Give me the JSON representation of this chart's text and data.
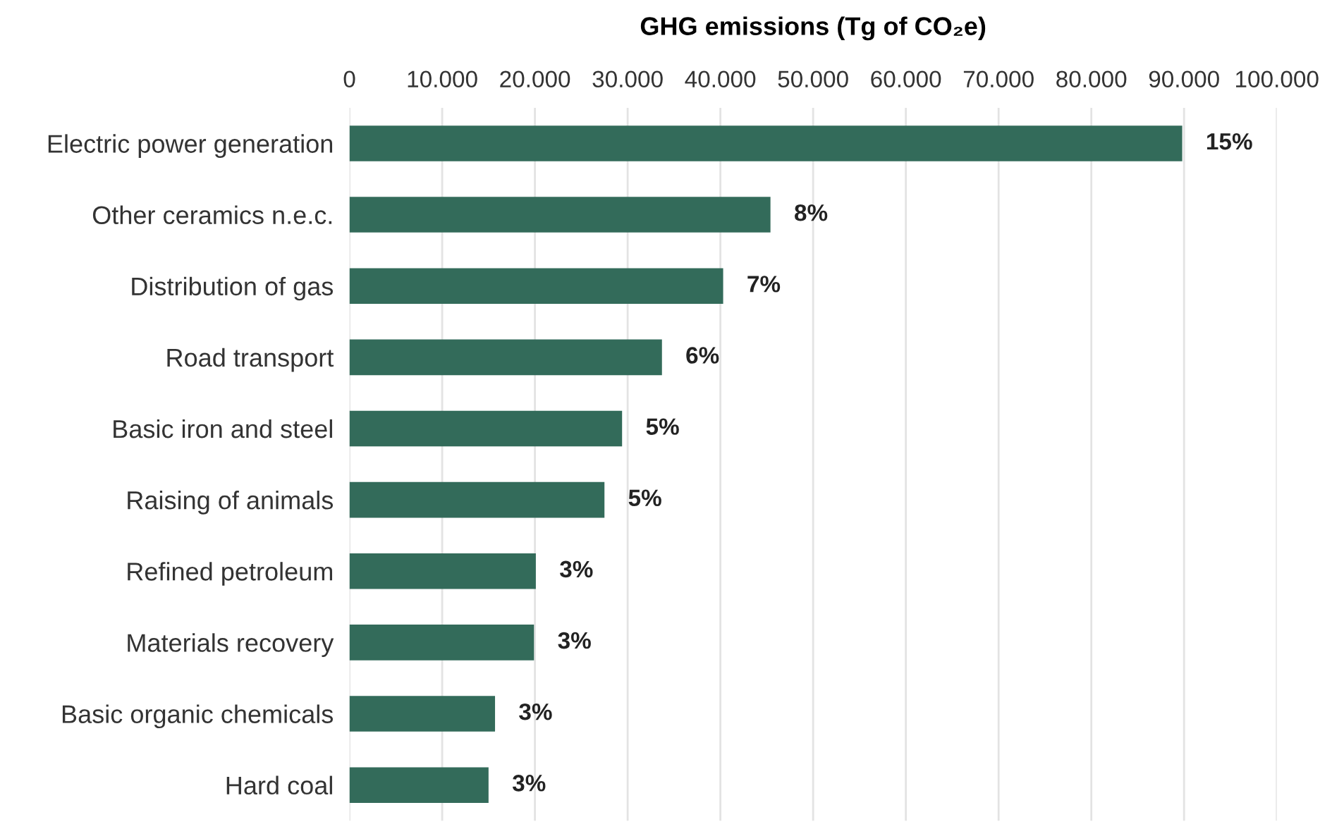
{
  "chart_data": {
    "type": "bar",
    "orientation": "horizontal",
    "xlabel": "GHG emissions (Tg of CO₂e)",
    "categories": [
      "Electric power generation",
      "Other ceramics n.e.c.",
      "Distribution of gas",
      "Road transport",
      "Basic iron and steel",
      "Raising of animals",
      "Refined petroleum",
      "Materials recovery",
      "Basic organic chemicals",
      "Hard coal"
    ],
    "values": [
      89800,
      45400,
      40300,
      33700,
      29400,
      27500,
      20100,
      19900,
      15700,
      15000
    ],
    "annotations": [
      {
        "text": "15%",
        "x": 89800,
        "y": "Electric power generation"
      },
      {
        "text": "8%",
        "x": 45400,
        "y": "Other ceramics n.e.c."
      },
      {
        "text": "7%",
        "x": 40300,
        "y": "Distribution of gas"
      },
      {
        "text": "6%",
        "x": 33700,
        "y": "Road transport"
      },
      {
        "text": "5%",
        "x": 29400,
        "y": "Basic iron and steel"
      },
      {
        "text": "5%",
        "x": 27500,
        "y": "Raising of animals"
      },
      {
        "text": "3%",
        "x": 20100,
        "y": "Refined petroleum"
      },
      {
        "text": "3%",
        "x": 19900,
        "y": "Materials recovery"
      },
      {
        "text": "3%",
        "x": 15700,
        "y": "Basic organic chemicals"
      },
      {
        "text": "3%",
        "x": 15000,
        "y": "Hard coal"
      }
    ],
    "color": "#336b5a",
    "xlim": [
      0,
      100000
    ],
    "xticks": [
      0,
      {
        "value": 10000,
        "label": "10.000"
      },
      {
        "value": 20000,
        "label": "20.000"
      },
      {
        "value": 30000,
        "label": "30.000"
      },
      {
        "value": 40000,
        "label": "40.000"
      },
      {
        "value": 50000,
        "label": "50.000"
      },
      {
        "value": 60000,
        "label": "60.000"
      },
      {
        "value": 70000,
        "label": "70.000"
      },
      {
        "value": 80000,
        "label": "80.000"
      },
      {
        "value": 90000,
        "label": "90.000"
      },
      {
        "value": 100000,
        "label": "100.000"
      }
    ],
    "grid": "x",
    "legend": false
  }
}
